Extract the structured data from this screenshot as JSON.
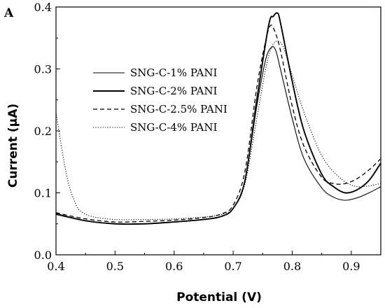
{
  "chart_data": {
    "type": "line",
    "panel_label": "A",
    "title": "",
    "xlabel": "Potential (V)",
    "ylabel": "Current (µA)",
    "xlim": [
      0.4,
      0.95
    ],
    "ylim": [
      0.0,
      0.4
    ],
    "x_ticks": [
      "0.4",
      "0.5",
      "0.6",
      "0.7",
      "0.8",
      "0.9"
    ],
    "y_ticks": [
      "0.0",
      "0.1",
      "0.2",
      "0.3",
      "0.4"
    ],
    "legend_position": "upper-left",
    "series": [
      {
        "name": "SNG-C-1% PANI",
        "style": "thin-solid",
        "x": [
          0.4,
          0.45,
          0.5,
          0.55,
          0.6,
          0.65,
          0.68,
          0.7,
          0.72,
          0.74,
          0.755,
          0.765,
          0.772,
          0.78,
          0.8,
          0.82,
          0.85,
          0.87,
          0.89,
          0.91,
          0.93,
          0.95
        ],
        "y": [
          0.065,
          0.055,
          0.05,
          0.05,
          0.053,
          0.057,
          0.062,
          0.075,
          0.12,
          0.24,
          0.315,
          0.335,
          0.33,
          0.3,
          0.22,
          0.155,
          0.108,
          0.093,
          0.088,
          0.092,
          0.1,
          0.11
        ]
      },
      {
        "name": "SNG-C-2% PANI",
        "style": "thick-solid",
        "x": [
          0.4,
          0.45,
          0.5,
          0.55,
          0.6,
          0.65,
          0.68,
          0.7,
          0.72,
          0.74,
          0.76,
          0.768,
          0.775,
          0.78,
          0.8,
          0.82,
          0.85,
          0.87,
          0.89,
          0.91,
          0.93,
          0.95
        ],
        "y": [
          0.066,
          0.055,
          0.05,
          0.05,
          0.053,
          0.057,
          0.062,
          0.075,
          0.12,
          0.25,
          0.37,
          0.385,
          0.39,
          0.375,
          0.28,
          0.2,
          0.13,
          0.11,
          0.1,
          0.105,
          0.12,
          0.148
        ]
      },
      {
        "name": "SNG-C-2.5% PANI",
        "style": "dashed",
        "x": [
          0.4,
          0.45,
          0.5,
          0.55,
          0.6,
          0.65,
          0.68,
          0.7,
          0.72,
          0.74,
          0.755,
          0.763,
          0.77,
          0.78,
          0.8,
          0.82,
          0.85,
          0.87,
          0.89,
          0.91,
          0.93,
          0.95
        ],
        "y": [
          0.068,
          0.058,
          0.053,
          0.054,
          0.056,
          0.06,
          0.066,
          0.08,
          0.135,
          0.27,
          0.345,
          0.37,
          0.362,
          0.33,
          0.24,
          0.175,
          0.125,
          0.115,
          0.115,
          0.123,
          0.137,
          0.155
        ]
      },
      {
        "name": "SNG-C-4% PANI",
        "style": "dotted",
        "x": [
          0.4,
          0.41,
          0.42,
          0.43,
          0.44,
          0.46,
          0.5,
          0.55,
          0.6,
          0.65,
          0.68,
          0.7,
          0.72,
          0.74,
          0.755,
          0.765,
          0.775,
          0.785,
          0.8,
          0.82,
          0.85,
          0.88,
          0.91,
          0.95
        ],
        "y": [
          0.23,
          0.17,
          0.12,
          0.09,
          0.072,
          0.062,
          0.057,
          0.057,
          0.058,
          0.061,
          0.065,
          0.075,
          0.115,
          0.22,
          0.3,
          0.335,
          0.345,
          0.335,
          0.29,
          0.23,
          0.16,
          0.125,
          0.11,
          0.115
        ]
      }
    ]
  }
}
